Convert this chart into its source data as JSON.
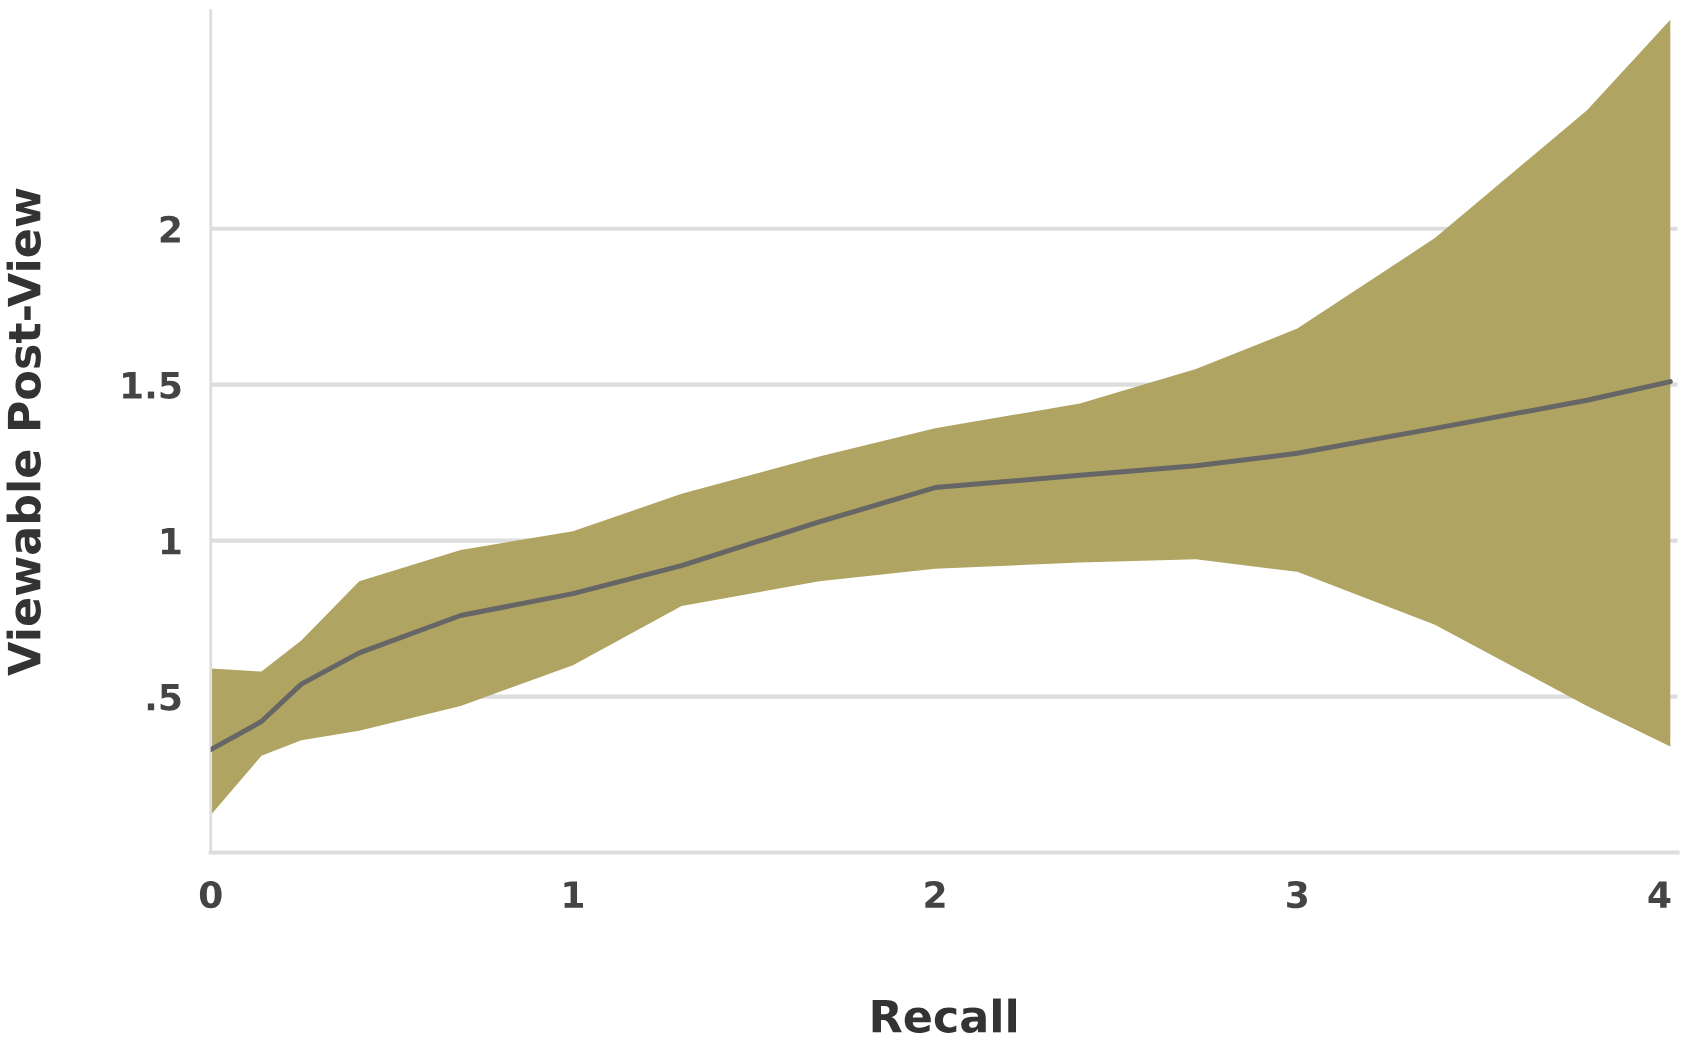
{
  "chart_data": {
    "type": "line",
    "xlabel": "Recall",
    "ylabel": "Viewable Post-View",
    "xlim": [
      0,
      4.05
    ],
    "xticks": [
      0,
      1,
      2,
      3,
      4
    ],
    "ylim": [
      0,
      2.7
    ],
    "yticks": [
      {
        "value": 0.5,
        "label": ".5"
      },
      1,
      1.5,
      2
    ],
    "grid": "y",
    "legend": false,
    "marker": "none",
    "line_style": "solid",
    "series": [
      {
        "color": "#666666",
        "x": [
          0,
          0.14,
          0.25,
          0.41,
          0.69,
          1,
          1.3,
          1.68,
          2,
          2.4,
          2.72,
          3,
          3.38,
          3.8,
          4.03
        ],
        "values": [
          0.33,
          0.42,
          0.54,
          0.64,
          0.76,
          0.83,
          0.92,
          1.06,
          1.17,
          1.21,
          1.24,
          1.28,
          1.36,
          1.45,
          1.51
        ],
        "upper": [
          0.59,
          0.58,
          0.68,
          0.87,
          0.97,
          1.03,
          1.15,
          1.27,
          1.36,
          1.44,
          1.55,
          1.68,
          1.97,
          2.38,
          2.67
        ],
        "lower": [
          0.12,
          0.31,
          0.36,
          0.39,
          0.47,
          0.6,
          0.79,
          0.87,
          0.91,
          0.93,
          0.94,
          0.9,
          0.73,
          0.47,
          0.34
        ]
      }
    ]
  }
}
